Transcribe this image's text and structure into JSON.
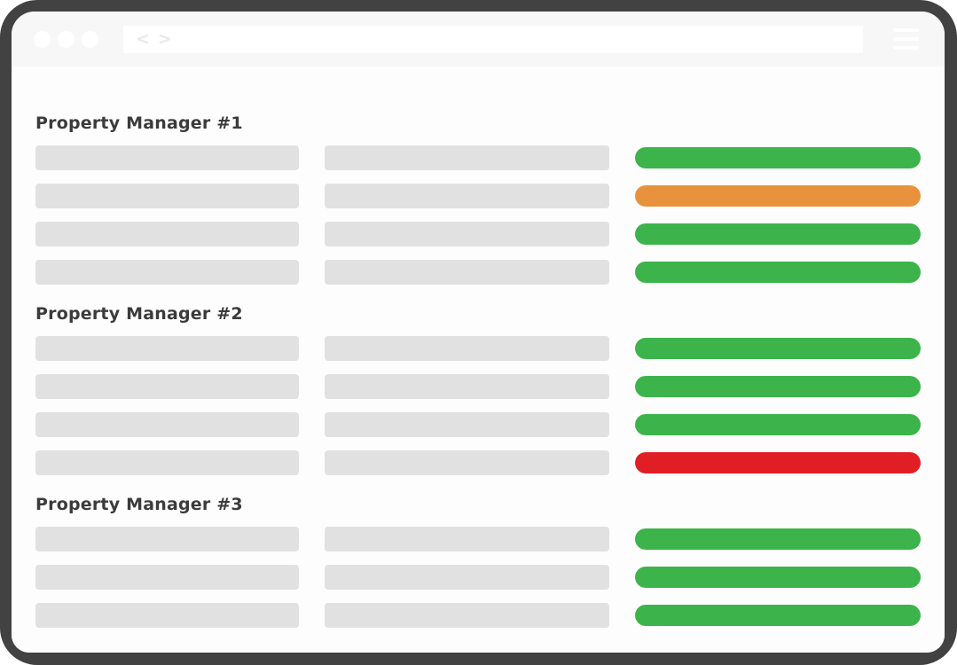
{
  "browser": {
    "window_controls": {
      "dot_count": 3
    },
    "nav": {
      "back_glyph": "<",
      "forward_glyph": ">"
    },
    "address_bar": {
      "value": ""
    },
    "menu": {
      "icon": "hamburger-icon"
    }
  },
  "colors": {
    "frame": "#424242",
    "chrome_bar": "#f7f7f7",
    "window_bg": "#fdfdfd",
    "address_bar_bg": "#ffffff",
    "placeholder_bar": "#e1e1e1",
    "heading_text": "#3b3b3b",
    "status_green": "#3cb44b",
    "status_orange": "#e8923e",
    "status_red": "#e21e25"
  },
  "sections": [
    {
      "title": "Property Manager #1",
      "rows": [
        {
          "placeholders": 2,
          "status": "green"
        },
        {
          "placeholders": 2,
          "status": "orange"
        },
        {
          "placeholders": 2,
          "status": "green"
        },
        {
          "placeholders": 2,
          "status": "green"
        }
      ]
    },
    {
      "title": "Property Manager #2",
      "rows": [
        {
          "placeholders": 2,
          "status": "green"
        },
        {
          "placeholders": 2,
          "status": "green"
        },
        {
          "placeholders": 2,
          "status": "green"
        },
        {
          "placeholders": 2,
          "status": "red"
        }
      ]
    },
    {
      "title": "Property Manager #3",
      "rows": [
        {
          "placeholders": 2,
          "status": "green"
        },
        {
          "placeholders": 2,
          "status": "green"
        },
        {
          "placeholders": 2,
          "status": "green"
        }
      ]
    }
  ]
}
